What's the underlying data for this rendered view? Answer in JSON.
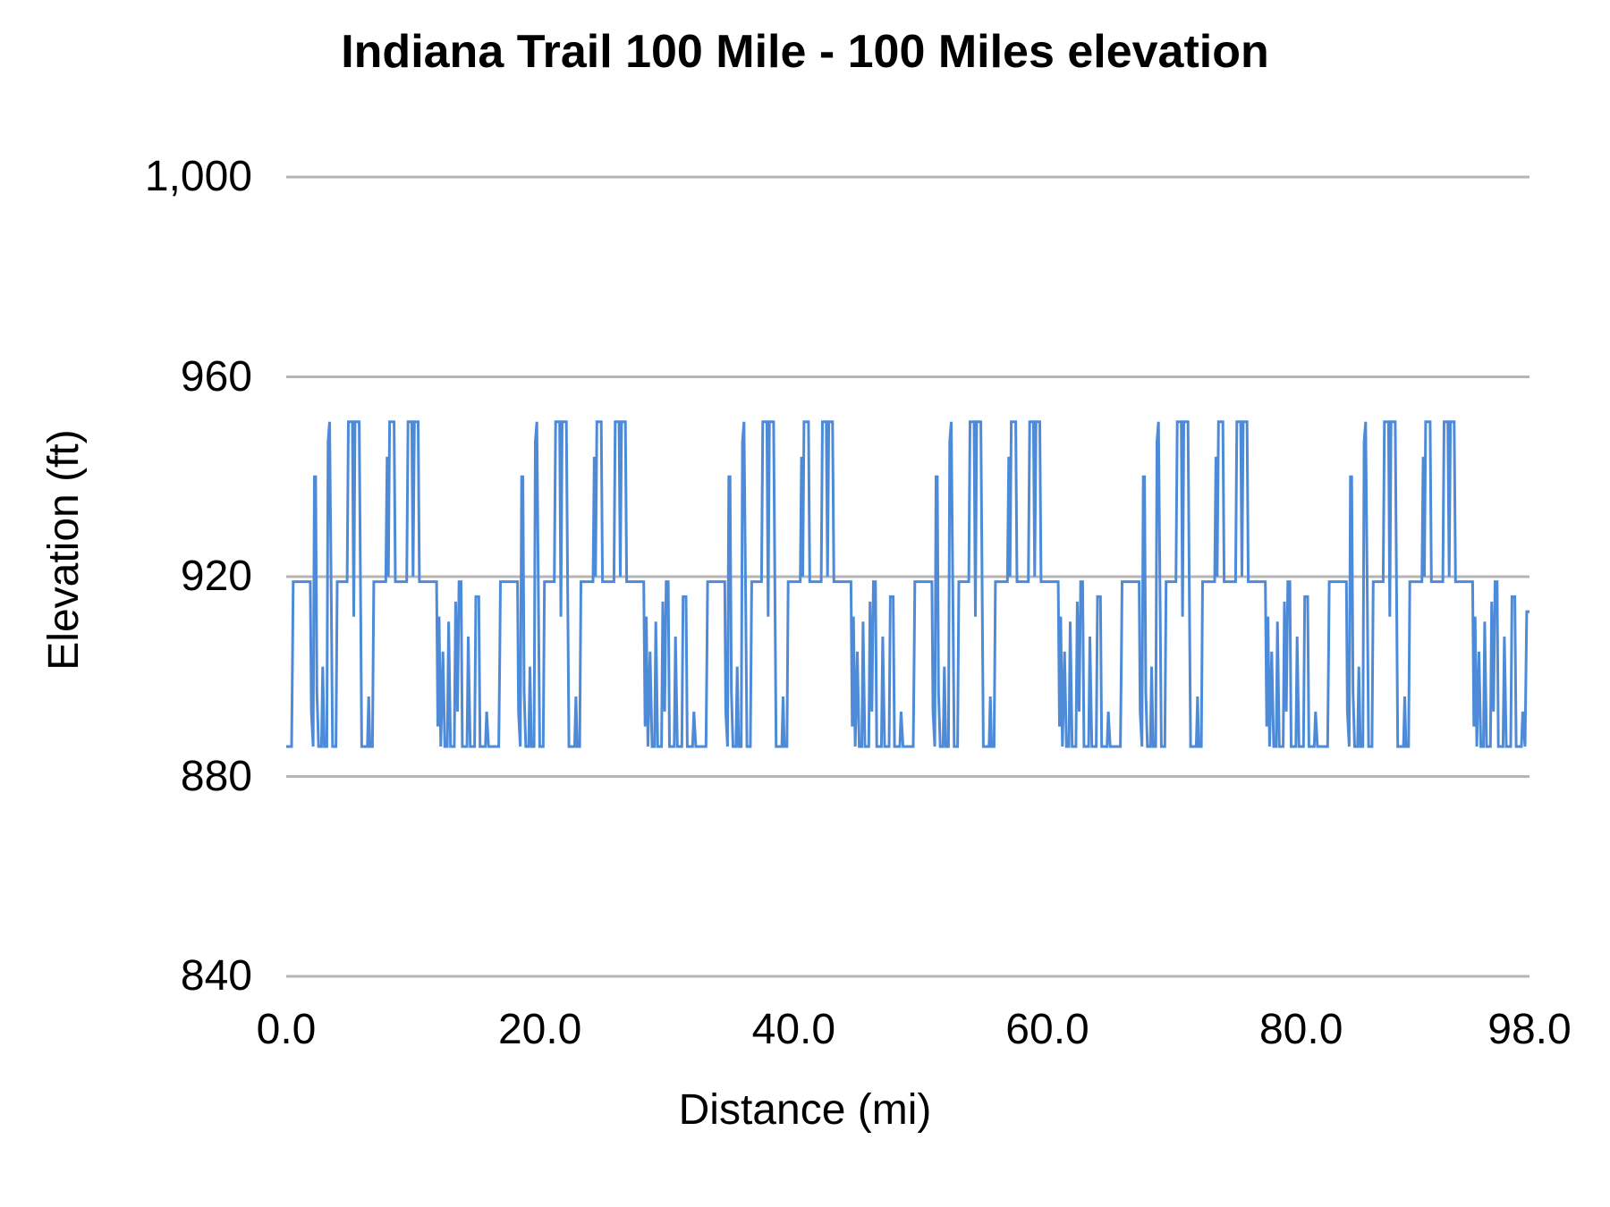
{
  "title": "Indiana Trail 100 Mile - 100 Miles elevation",
  "colors": {
    "background": "#ffffff",
    "line": "#4d8bd9",
    "gridline": "#b5b5b5",
    "text": "#000000"
  },
  "chart_data": {
    "type": "line",
    "title": "Indiana Trail 100 Mile - 100 Miles elevation",
    "xlabel": "Distance (mi)",
    "ylabel": "Elevation (ft)",
    "xlim": [
      0,
      98
    ],
    "ylim": [
      840,
      1000
    ],
    "x_tick_values": [
      0,
      20,
      40,
      60,
      80,
      98
    ],
    "x_tick_labels": [
      "0.0",
      "20.0",
      "40.0",
      "60.0",
      "80.0",
      "98.0"
    ],
    "y_tick_values": [
      840,
      880,
      920,
      960,
      1000
    ],
    "y_tick_labels": [
      "840",
      "880",
      "920",
      "960",
      "1,000"
    ],
    "grid": "horizontal-only",
    "legend": "none",
    "line_color": "#4d8bd9",
    "series_name": "elevation",
    "elevation_min_ft": 886,
    "elevation_max_ft": 951,
    "plateau_ft": 919,
    "loop_structure": {
      "num_loops": 6,
      "loop_length_mi": 16.3333,
      "note": "course repeats ~16.33 mi loop pattern six times over 98 mi"
    },
    "loop_profile": [
      [
        0.0,
        886
      ],
      [
        0.42,
        886
      ],
      [
        0.5,
        905
      ],
      [
        0.55,
        919
      ],
      [
        1.9,
        919
      ],
      [
        1.98,
        893
      ],
      [
        2.12,
        886
      ],
      [
        2.22,
        940
      ],
      [
        2.32,
        940
      ],
      [
        2.42,
        897
      ],
      [
        2.55,
        886
      ],
      [
        2.78,
        886
      ],
      [
        2.88,
        902
      ],
      [
        3.0,
        886
      ],
      [
        3.2,
        886
      ],
      [
        3.3,
        947
      ],
      [
        3.42,
        951
      ],
      [
        3.55,
        915
      ],
      [
        3.65,
        886
      ],
      [
        3.92,
        886
      ],
      [
        4.02,
        919
      ],
      [
        4.8,
        919
      ],
      [
        4.9,
        951
      ],
      [
        5.22,
        951
      ],
      [
        5.32,
        912
      ],
      [
        5.42,
        951
      ],
      [
        5.75,
        951
      ],
      [
        5.85,
        919
      ],
      [
        5.95,
        886
      ],
      [
        6.4,
        886
      ],
      [
        6.5,
        896
      ],
      [
        6.6,
        886
      ],
      [
        6.8,
        886
      ],
      [
        6.9,
        919
      ],
      [
        7.85,
        919
      ],
      [
        7.95,
        944
      ],
      [
        8.05,
        920
      ],
      [
        8.15,
        951
      ],
      [
        8.5,
        951
      ],
      [
        8.6,
        919
      ],
      [
        9.5,
        919
      ],
      [
        9.6,
        951
      ],
      [
        9.9,
        951
      ],
      [
        10.0,
        920
      ],
      [
        10.1,
        951
      ],
      [
        10.4,
        951
      ],
      [
        10.5,
        919
      ],
      [
        11.85,
        919
      ],
      [
        11.95,
        890
      ],
      [
        12.05,
        912
      ],
      [
        12.18,
        886
      ],
      [
        12.35,
        905
      ],
      [
        12.5,
        886
      ],
      [
        12.7,
        886
      ],
      [
        12.8,
        911
      ],
      [
        12.95,
        886
      ],
      [
        13.25,
        886
      ],
      [
        13.35,
        915
      ],
      [
        13.5,
        893
      ],
      [
        13.62,
        919
      ],
      [
        13.78,
        919
      ],
      [
        13.88,
        886
      ],
      [
        14.25,
        886
      ],
      [
        14.35,
        908
      ],
      [
        14.5,
        886
      ],
      [
        14.85,
        886
      ],
      [
        14.95,
        916
      ],
      [
        15.18,
        916
      ],
      [
        15.28,
        886
      ],
      [
        15.7,
        886
      ],
      [
        15.8,
        893
      ],
      [
        15.95,
        886
      ],
      [
        16.2,
        886
      ],
      [
        16.33,
        886
      ]
    ],
    "end_override_from_mi": 97.55,
    "end_override": [
      [
        97.65,
        886
      ],
      [
        97.78,
        913
      ],
      [
        98.0,
        913
      ]
    ]
  }
}
